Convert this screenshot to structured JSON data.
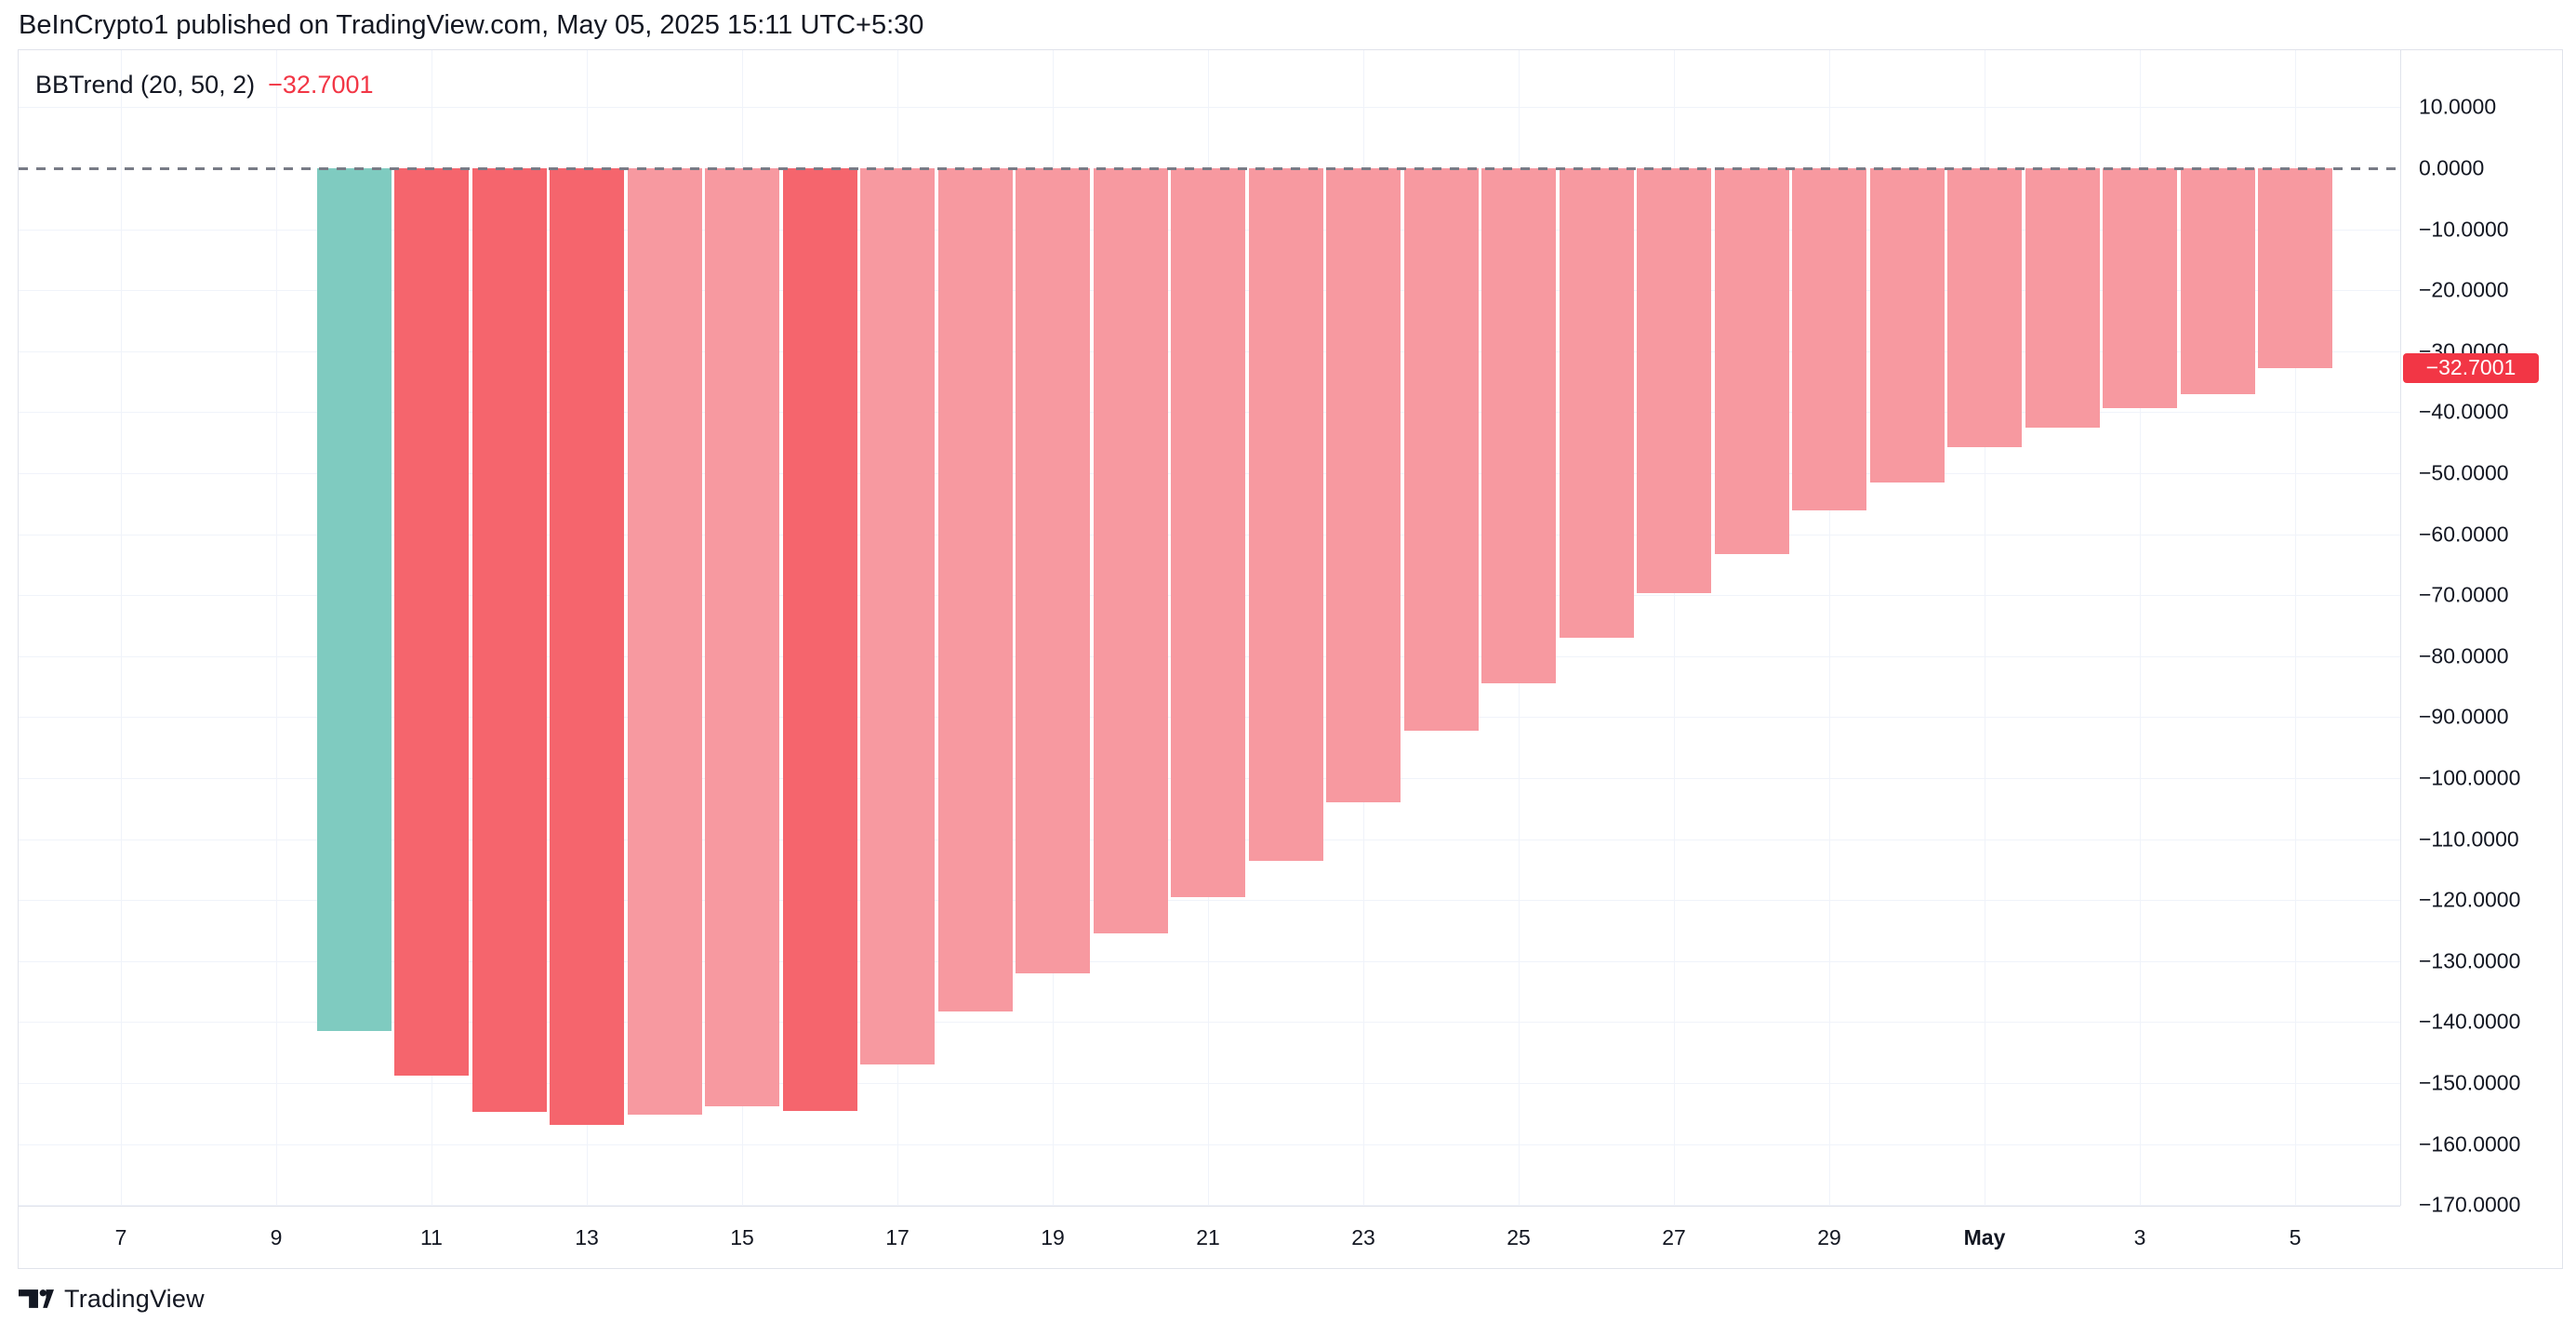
{
  "header": {
    "title": "BeInCrypto1 published on TradingView.com, May 05, 2025 15:11 UTC+5:30"
  },
  "legend": {
    "indicator": "BBTrend (20, 50, 2)",
    "value": "−32.7001"
  },
  "price_label": {
    "text": "−32.7001"
  },
  "footer": {
    "brand": "TradingView"
  },
  "colors": {
    "up": "#7FCBC0",
    "down": "#F5656D",
    "down_faded": "#F799A0",
    "accent_red": "#F23645",
    "text_dark": "#131722",
    "grid": "#F0F3FA",
    "frame": "#E0E3EB",
    "zero_line_gray": "#787B86"
  },
  "chart_data": {
    "type": "bar",
    "title": "BBTrend (20, 50, 2)",
    "current_value": -32.7001,
    "dates": [
      "Apr 10",
      "Apr 11",
      "Apr 12",
      "Apr 13",
      "Apr 14",
      "Apr 15",
      "Apr 16",
      "Apr 17",
      "Apr 18",
      "Apr 19",
      "Apr 20",
      "Apr 21",
      "Apr 22",
      "Apr 23",
      "Apr 24",
      "Apr 25",
      "Apr 26",
      "Apr 27",
      "Apr 28",
      "Apr 29",
      "Apr 30",
      "May 1",
      "May 2",
      "May 3",
      "May 4",
      "May 5"
    ],
    "values": [
      -141.4,
      -148.8,
      -154.7,
      -156.8,
      -155.2,
      -153.8,
      -154.6,
      -147.0,
      -138.2,
      -132.0,
      -125.4,
      -119.5,
      -113.5,
      -104.0,
      -92.2,
      -84.5,
      -77.0,
      -69.6,
      -63.2,
      -56.1,
      -51.6,
      -45.7,
      -42.5,
      -39.3,
      -37.0,
      -32.7001
    ],
    "bar_colors": [
      "up",
      "down",
      "down",
      "down",
      "down_faded",
      "down_faded",
      "down",
      "down_faded",
      "down_faded",
      "down_faded",
      "down_faded",
      "down_faded",
      "down_faded",
      "down_faded",
      "down_faded",
      "down_faded",
      "down_faded",
      "down_faded",
      "down_faded",
      "down_faded",
      "down_faded",
      "down_faded",
      "down_faded",
      "down_faded",
      "down_faded",
      "down_faded"
    ],
    "x_tick_labels": [
      "7",
      "9",
      "11",
      "13",
      "15",
      "17",
      "19",
      "21",
      "23",
      "25",
      "27",
      "29",
      "May",
      "3",
      "5"
    ],
    "y_tick_labels": [
      "10.0000",
      "0.0000",
      "−10.0000",
      "−20.0000",
      "−30.0000",
      "−40.0000",
      "−50.0000",
      "−60.0000",
      "−70.0000",
      "−80.0000",
      "−90.0000",
      "−100.0000",
      "−110.0000",
      "−120.0000",
      "−130.0000",
      "−140.0000",
      "−150.0000",
      "−160.0000",
      "−170.0000"
    ],
    "ylim": [
      -170,
      10
    ],
    "grid": true,
    "zero_line": "dashed",
    "legend_position": "top-left"
  }
}
